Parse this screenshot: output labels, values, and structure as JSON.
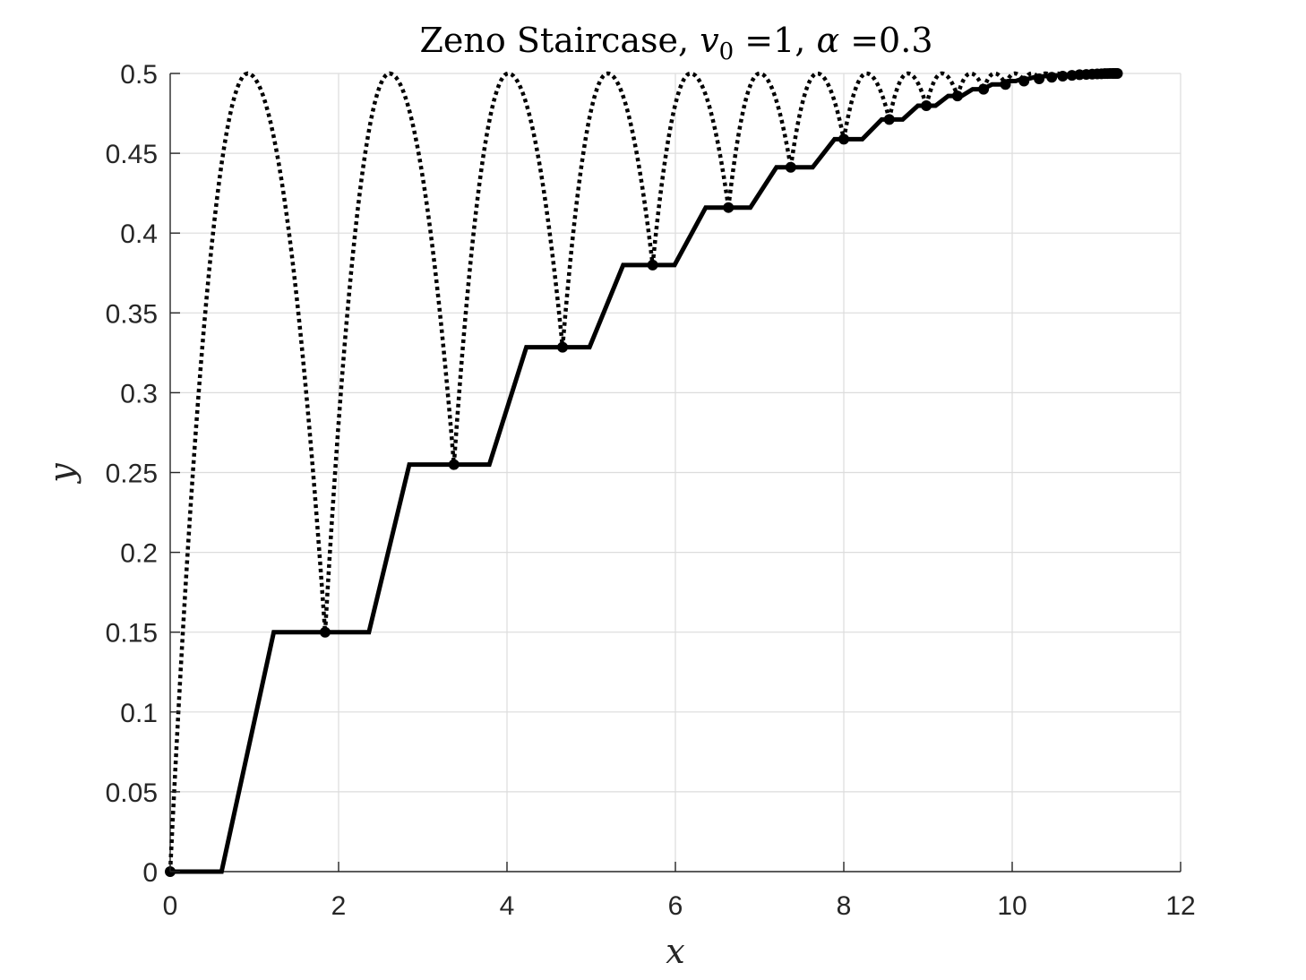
{
  "chart_data": {
    "type": "line",
    "title_parts": {
      "text": "Zeno Staircase, ",
      "v": "v",
      "sub": "0",
      "eq1": " =1, ",
      "alpha": "α",
      "eq2": " =0.3"
    },
    "xlabel": "x",
    "ylabel": "y",
    "xlim": [
      0,
      12
    ],
    "ylim": [
      0,
      0.5
    ],
    "xticks": [
      0,
      2,
      4,
      6,
      8,
      10,
      12
    ],
    "xtick_labels": [
      "0",
      "2",
      "4",
      "6",
      "8",
      "10",
      "12"
    ],
    "yticks": [
      0,
      0.05,
      0.1,
      0.15,
      0.2,
      0.25,
      0.3,
      0.35,
      0.4,
      0.45,
      0.5
    ],
    "ytick_labels": [
      "0",
      "0.05",
      "0.1",
      "0.15",
      "0.2",
      "0.25",
      "0.3",
      "0.35",
      "0.4",
      "0.45",
      "0.5"
    ],
    "grid": true,
    "legend": "none",
    "colors": {
      "series": "#000000",
      "grid": "#dcdcdc",
      "axis": "#262626"
    },
    "v0": 1,
    "alpha": 0.3,
    "series": [
      {
        "style": "dotted",
        "description_values": "arcs through landing points",
        "arcs": [
          {
            "x_start": 0.0,
            "x_end": 1.84,
            "y_start": 0.0,
            "y_end": 0.15,
            "y_peak": 0.5
          },
          {
            "x_start": 1.84,
            "x_end": 3.37,
            "y_start": 0.15,
            "y_end": 0.255,
            "y_peak": 0.5
          },
          {
            "x_start": 3.37,
            "x_end": 4.66,
            "y_start": 0.255,
            "y_end": 0.3285,
            "y_peak": 0.5
          },
          {
            "x_start": 4.66,
            "x_end": 5.73,
            "y_start": 0.3285,
            "y_end": 0.38,
            "y_peak": 0.5
          },
          {
            "x_start": 5.73,
            "x_end": 6.63,
            "y_start": 0.38,
            "y_end": 0.416,
            "y_peak": 0.5
          },
          {
            "x_start": 6.63,
            "x_end": 7.37,
            "y_start": 0.416,
            "y_end": 0.4412,
            "y_peak": 0.5
          },
          {
            "x_start": 7.37,
            "x_end": 8.0,
            "y_start": 0.4412,
            "y_end": 0.4588,
            "y_peak": 0.5
          },
          {
            "x_start": 8.0,
            "x_end": 8.54,
            "y_start": 0.4588,
            "y_end": 0.4712,
            "y_peak": 0.5
          },
          {
            "x_start": 8.54,
            "x_end": 8.98,
            "y_start": 0.4712,
            "y_end": 0.4798,
            "y_peak": 0.5
          },
          {
            "x_start": 8.98,
            "x_end": 9.35,
            "y_start": 0.4798,
            "y_end": 0.4859,
            "y_peak": 0.5
          },
          {
            "x_start": 9.35,
            "x_end": 9.66,
            "y_start": 0.4859,
            "y_end": 0.4901,
            "y_peak": 0.5
          },
          {
            "x_start": 9.66,
            "x_end": 9.92,
            "y_start": 0.4901,
            "y_end": 0.4931,
            "y_peak": 0.5
          },
          {
            "x_start": 9.92,
            "x_end": 10.14,
            "y_start": 0.4931,
            "y_end": 0.4952,
            "y_peak": 0.5
          },
          {
            "x_start": 10.14,
            "x_end": 10.32,
            "y_start": 0.4952,
            "y_end": 0.4966,
            "y_peak": 0.5
          },
          {
            "x_start": 10.32,
            "x_end": 10.47,
            "y_start": 0.4966,
            "y_end": 0.4976,
            "y_peak": 0.5
          },
          {
            "x_start": 10.47,
            "x_end": 10.6,
            "y_start": 0.4976,
            "y_end": 0.4983,
            "y_peak": 0.5
          },
          {
            "x_start": 10.6,
            "x_end": 10.71,
            "y_start": 0.4983,
            "y_end": 0.4988,
            "y_peak": 0.5
          },
          {
            "x_start": 10.71,
            "x_end": 10.8,
            "y_start": 0.4988,
            "y_end": 0.4992,
            "y_peak": 0.5
          },
          {
            "x_start": 10.8,
            "x_end": 10.88,
            "y_start": 0.4992,
            "y_end": 0.4994,
            "y_peak": 0.5
          },
          {
            "x_start": 10.88,
            "x_end": 10.95,
            "y_start": 0.4994,
            "y_end": 0.4996,
            "y_peak": 0.5
          },
          {
            "x_start": 10.95,
            "x_end": 11.01,
            "y_start": 0.4996,
            "y_end": 0.4997,
            "y_peak": 0.5
          },
          {
            "x_start": 11.01,
            "x_end": 11.06,
            "y_start": 0.4997,
            "y_end": 0.4998,
            "y_peak": 0.5
          },
          {
            "x_start": 11.06,
            "x_end": 11.1,
            "y_start": 0.4998,
            "y_end": 0.4999,
            "y_peak": 0.5
          },
          {
            "x_start": 11.1,
            "x_end": 11.13,
            "y_start": 0.4999,
            "y_end": 0.4999,
            "y_peak": 0.5
          },
          {
            "x_start": 11.13,
            "x_end": 11.16,
            "y_start": 0.4999,
            "y_end": 0.5,
            "y_peak": 0.5
          }
        ]
      },
      {
        "style": "solid",
        "x": [
          0.0,
          0.61,
          1.23,
          2.36,
          2.84,
          3.79,
          4.23,
          4.98,
          5.38,
          5.99,
          6.36,
          6.89,
          7.2,
          7.63,
          7.89,
          8.22,
          8.45,
          8.7,
          8.88,
          9.09,
          9.24,
          9.4,
          9.53,
          9.65,
          9.76,
          9.86,
          9.95,
          10.04,
          10.12,
          10.19,
          10.26,
          10.32,
          10.38,
          10.44,
          10.5,
          10.56,
          10.62,
          10.68,
          10.74,
          10.8,
          10.86,
          10.92,
          10.98,
          11.04,
          11.1,
          11.16,
          11.22,
          11.25
        ],
        "y": [
          0.0,
          0.0,
          0.15,
          0.15,
          0.255,
          0.255,
          0.3285,
          0.3285,
          0.38,
          0.38,
          0.416,
          0.416,
          0.4412,
          0.4412,
          0.4588,
          0.4588,
          0.4712,
          0.4712,
          0.4798,
          0.4798,
          0.4859,
          0.4859,
          0.4901,
          0.4901,
          0.4931,
          0.4931,
          0.4952,
          0.4952,
          0.4966,
          0.4966,
          0.4976,
          0.4976,
          0.4983,
          0.4983,
          0.4988,
          0.4988,
          0.4992,
          0.4992,
          0.4994,
          0.4994,
          0.4996,
          0.4996,
          0.4997,
          0.4997,
          0.4998,
          0.4998,
          0.4999,
          0.5
        ]
      }
    ],
    "markers": {
      "x": [
        0.0,
        1.84,
        3.37,
        4.66,
        5.73,
        6.63,
        7.37,
        8.0,
        8.54,
        8.98,
        9.35,
        9.66,
        9.92,
        10.14,
        10.32,
        10.47,
        10.6,
        10.71,
        10.8,
        10.88,
        10.95,
        11.01,
        11.06,
        11.1,
        11.13,
        11.16,
        11.19,
        11.21,
        11.23,
        11.25
      ],
      "y": [
        0.0,
        0.15,
        0.255,
        0.3285,
        0.38,
        0.416,
        0.4412,
        0.4588,
        0.4712,
        0.4798,
        0.4859,
        0.4901,
        0.4931,
        0.4952,
        0.4966,
        0.4976,
        0.4983,
        0.4988,
        0.4992,
        0.4994,
        0.4996,
        0.4997,
        0.4998,
        0.4999,
        0.4999,
        0.5,
        0.5,
        0.5,
        0.5,
        0.5
      ]
    }
  }
}
